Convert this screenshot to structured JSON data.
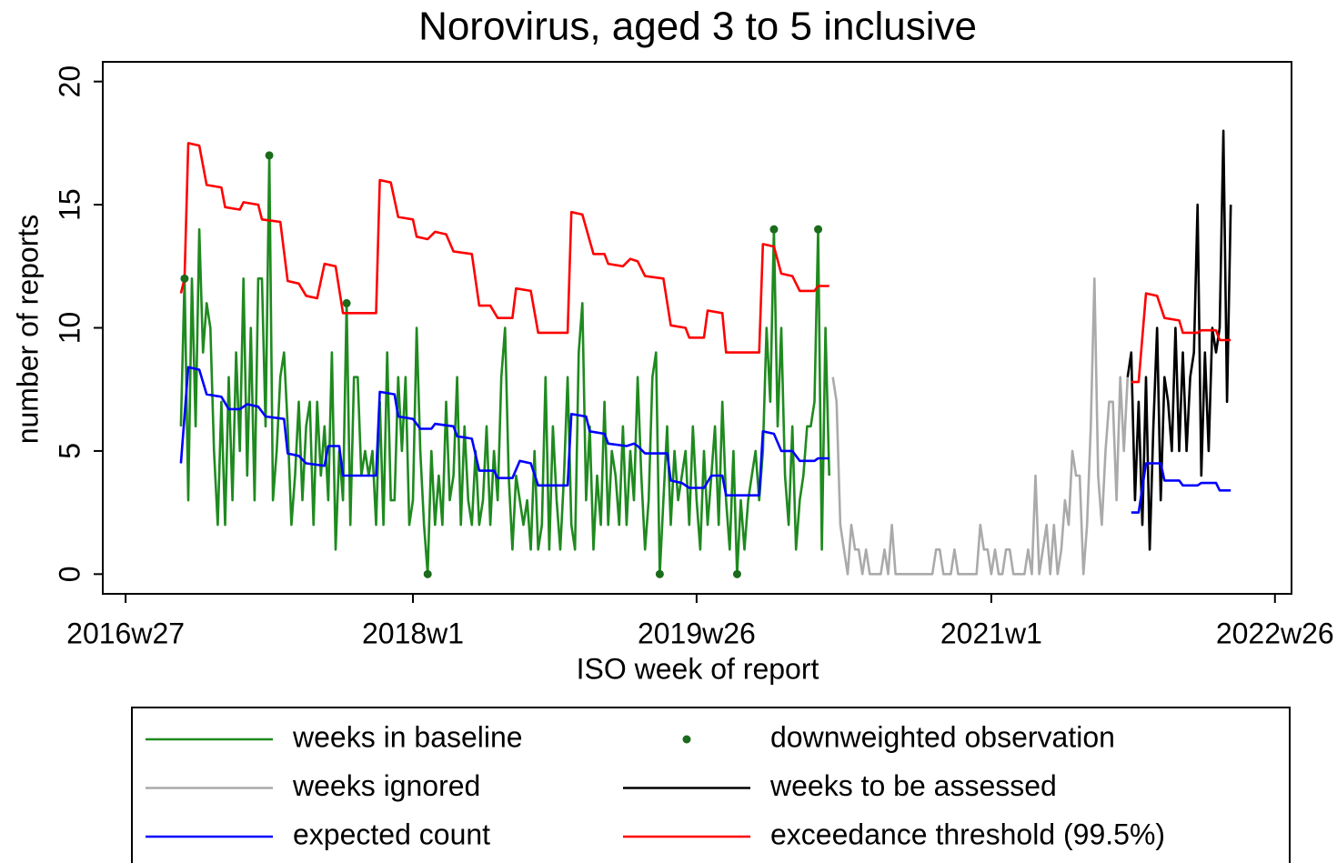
{
  "chart_data": {
    "type": "line",
    "title": "Norovirus, aged 3 to 5 inclusive",
    "x_label": "ISO week of report",
    "y_label": "number of reports",
    "xlim": [
      -6.2,
      316.5
    ],
    "ylim": [
      -0.8,
      20.8
    ],
    "xticks": [
      {
        "value": 0,
        "label": "2016w27"
      },
      {
        "value": 78,
        "label": "2018w1"
      },
      {
        "value": 155,
        "label": "2019w26"
      },
      {
        "value": 235,
        "label": "2021w1"
      },
      {
        "value": 312,
        "label": "2022w26"
      }
    ],
    "yticks": [
      0,
      5,
      10,
      15,
      20
    ],
    "series": [
      {
        "name": "weeks in baseline",
        "color": "#1f8a1f",
        "style": "line",
        "x": [
          15,
          16,
          17,
          18,
          19,
          20,
          21,
          22,
          23,
          24,
          25,
          26,
          27,
          28,
          29,
          30,
          31,
          32,
          33,
          34,
          35,
          36,
          37,
          38,
          39,
          40,
          41,
          42,
          43,
          44,
          45,
          46,
          47,
          48,
          49,
          50,
          51,
          52,
          53,
          54,
          55,
          56,
          57,
          58,
          59,
          60,
          61,
          62,
          63,
          64,
          65,
          66,
          67,
          68,
          69,
          70,
          71,
          72,
          73,
          74,
          75,
          76,
          77,
          78,
          79,
          80,
          81,
          82,
          83,
          84,
          85,
          86,
          87,
          88,
          89,
          90,
          91,
          92,
          93,
          94,
          95,
          96,
          97,
          98,
          99,
          100,
          101,
          102,
          103,
          104,
          105,
          106,
          107,
          108,
          109,
          110,
          111,
          112,
          113,
          114,
          115,
          116,
          117,
          118,
          119,
          120,
          121,
          122,
          123,
          124,
          125,
          126,
          127,
          128,
          129,
          130,
          131,
          132,
          133,
          134,
          135,
          136,
          137,
          138,
          139,
          140,
          141,
          142,
          143,
          144,
          145,
          146,
          147,
          148,
          149,
          150,
          151,
          152,
          153,
          154,
          155,
          156,
          157,
          158,
          159,
          160,
          161,
          162,
          163,
          164,
          165,
          166,
          167,
          168,
          169,
          170,
          171,
          172,
          173,
          174,
          175,
          176,
          177,
          178,
          179,
          180,
          181,
          182,
          183,
          184,
          185,
          186,
          187,
          188,
          189,
          190,
          191
        ],
        "values": [
          6,
          12,
          3,
          12,
          6,
          14,
          9,
          11,
          10,
          5,
          2,
          7,
          2,
          8,
          3,
          9,
          5,
          12,
          4,
          10,
          3,
          12,
          12,
          6,
          17,
          3,
          5,
          8,
          9,
          6,
          2,
          4,
          7,
          3,
          6,
          7,
          2,
          7,
          4,
          6,
          3,
          9,
          1,
          5,
          3,
          11,
          2,
          8,
          8,
          4,
          5,
          4,
          5,
          2,
          7,
          2,
          9,
          3,
          3,
          8,
          5,
          8,
          2,
          3,
          10,
          5,
          2,
          0,
          5,
          2,
          4,
          2,
          7,
          3,
          4,
          8,
          2,
          6,
          3,
          2,
          5,
          2,
          3,
          6,
          2,
          5,
          3,
          8,
          10,
          4,
          1,
          4,
          3,
          2,
          3,
          1,
          5,
          1,
          2,
          8,
          1,
          6,
          3,
          1,
          4,
          8,
          2,
          1,
          9,
          11,
          3,
          6,
          1,
          4,
          2,
          7,
          2,
          5,
          4,
          2,
          6,
          2,
          5,
          3,
          8,
          4,
          1,
          3,
          8,
          9,
          0,
          3,
          6,
          2,
          5,
          3,
          4,
          5,
          2,
          6,
          3,
          1,
          5,
          2,
          4,
          6,
          2,
          7,
          3,
          1,
          5,
          0,
          3,
          1,
          3,
          4,
          5,
          3,
          5,
          10,
          7,
          14,
          6,
          10,
          4,
          2,
          6,
          1,
          3,
          4,
          6,
          6,
          7,
          14,
          1,
          10,
          4
        ]
      },
      {
        "name": "downweighted observation",
        "color": "#1a6b1a",
        "style": "points",
        "x": [
          16,
          39,
          60,
          82,
          145,
          166,
          176,
          188
        ],
        "values": [
          12,
          17,
          11,
          0,
          0,
          0,
          14,
          14
        ]
      },
      {
        "name": "weeks ignored",
        "color": "#aaaaaa",
        "style": "line",
        "x": [
          192,
          193,
          194,
          195,
          196,
          197,
          198,
          199,
          200,
          201,
          202,
          203,
          204,
          205,
          206,
          207,
          208,
          209,
          210,
          211,
          212,
          213,
          214,
          215,
          216,
          217,
          218,
          219,
          220,
          221,
          222,
          223,
          224,
          225,
          226,
          227,
          228,
          229,
          230,
          231,
          232,
          233,
          234,
          235,
          236,
          237,
          238,
          239,
          240,
          241,
          242,
          243,
          244,
          245,
          246,
          247,
          248,
          249,
          250,
          251,
          252,
          253,
          254,
          255,
          256,
          257,
          258,
          259,
          260,
          261,
          262,
          263,
          264,
          265,
          266,
          267,
          268,
          269,
          270,
          271,
          272
        ],
        "values": [
          8,
          7,
          2,
          1,
          0,
          2,
          1,
          1,
          0,
          1,
          0,
          0,
          0,
          0,
          1,
          0,
          2,
          0,
          0,
          0,
          0,
          0,
          0,
          0,
          0,
          0,
          0,
          0,
          1,
          1,
          0,
          0,
          0,
          1,
          0,
          0,
          0,
          0,
          0,
          0,
          2,
          1,
          1,
          0,
          1,
          0,
          0,
          1,
          1,
          0,
          0,
          0,
          0,
          1,
          0,
          4,
          0,
          1,
          2,
          0,
          2,
          0,
          1,
          3,
          2,
          5,
          4,
          4,
          0,
          2,
          6,
          12,
          4,
          2,
          5,
          7,
          7,
          3,
          8,
          5,
          8
        ]
      },
      {
        "name": "weeks to be assessed",
        "color": "#000000",
        "style": "line",
        "x": [
          272,
          273,
          274,
          275,
          276,
          277,
          278,
          279,
          280,
          281,
          282,
          283,
          284,
          285,
          286,
          287,
          288,
          289,
          290,
          291,
          292,
          293,
          294,
          295,
          296,
          297,
          298,
          299,
          300
        ],
        "values": [
          8,
          9,
          3,
          7,
          2,
          8,
          1,
          6,
          10,
          3,
          8,
          7,
          5,
          10,
          5,
          9,
          5,
          8,
          9,
          15,
          4,
          9,
          5,
          10,
          9,
          10,
          18,
          7,
          15
        ]
      },
      {
        "name": "expected count",
        "color": "#0000ff",
        "style": "line",
        "x": [
          15,
          17,
          20,
          22,
          26,
          28,
          31,
          33,
          36,
          38,
          43,
          44,
          47,
          49,
          54,
          55,
          58,
          59,
          68,
          69,
          73,
          74,
          78,
          80,
          83,
          84,
          89,
          90,
          94,
          96,
          100,
          101,
          105,
          107,
          110,
          112,
          120,
          121,
          125,
          126,
          130,
          131,
          136,
          138,
          139,
          141,
          147,
          148,
          151,
          153,
          157,
          159,
          162,
          163,
          172,
          173,
          176,
          178,
          181,
          183,
          187,
          188,
          191,
          232,
          273,
          275,
          277,
          281,
          282,
          286,
          287,
          291,
          292,
          296,
          297,
          300
        ],
        "values": [
          4.5,
          8.4,
          8.3,
          7.3,
          7.2,
          6.7,
          6.7,
          6.9,
          6.8,
          6.4,
          6.3,
          4.9,
          4.8,
          4.5,
          4.4,
          5.2,
          5.2,
          4.0,
          4.0,
          7.4,
          7.3,
          6.4,
          6.3,
          5.9,
          5.9,
          6.1,
          6.0,
          5.6,
          5.5,
          4.2,
          4.2,
          3.9,
          3.9,
          4.6,
          4.5,
          3.6,
          3.6,
          6.5,
          6.4,
          5.8,
          5.7,
          5.3,
          5.2,
          5.3,
          5.2,
          4.9,
          4.9,
          3.8,
          3.7,
          3.5,
          3.5,
          4.0,
          4.0,
          3.2,
          3.2,
          5.8,
          5.7,
          5.0,
          5.0,
          4.6,
          4.6,
          4.7,
          4.7,
          null,
          2.5,
          2.5,
          4.5,
          4.5,
          3.8,
          3.8,
          3.6,
          3.6,
          3.7,
          3.7,
          3.4,
          3.4
        ]
      },
      {
        "name": "exceedance threshold (99.5%)",
        "color": "#ff0000",
        "style": "line",
        "x": [
          15,
          16,
          17,
          20,
          22,
          26,
          27,
          31,
          32,
          36,
          37,
          42,
          44,
          47,
          49,
          52,
          54,
          57,
          59,
          68,
          69,
          72,
          74,
          78,
          79,
          82,
          84,
          87,
          89,
          94,
          96,
          99,
          101,
          105,
          106,
          110,
          112,
          120,
          121,
          124,
          127,
          130,
          131,
          135,
          137,
          139,
          141,
          146,
          148,
          152,
          153,
          157,
          158,
          162,
          163,
          172,
          173,
          176,
          178,
          181,
          183,
          187,
          188,
          191,
          232,
          273,
          275,
          277,
          280,
          282,
          286,
          287,
          291,
          292,
          296,
          297,
          300
        ],
        "values": [
          11.4,
          12.0,
          17.5,
          17.4,
          15.8,
          15.7,
          14.9,
          14.8,
          15.1,
          15.0,
          14.4,
          14.3,
          11.9,
          11.8,
          11.3,
          11.2,
          12.6,
          12.5,
          10.6,
          10.6,
          16.0,
          15.9,
          14.5,
          14.4,
          13.7,
          13.6,
          13.9,
          13.8,
          13.1,
          13.0,
          10.9,
          10.9,
          10.4,
          10.4,
          11.6,
          11.5,
          9.8,
          9.8,
          14.7,
          14.6,
          13.0,
          13.0,
          12.6,
          12.5,
          12.8,
          12.7,
          12.1,
          12.0,
          10.1,
          10.0,
          9.6,
          9.6,
          10.7,
          10.6,
          9.0,
          9.0,
          13.4,
          13.3,
          12.2,
          12.1,
          11.5,
          11.5,
          11.7,
          11.7,
          null,
          7.8,
          7.8,
          11.4,
          11.3,
          10.4,
          10.3,
          9.8,
          9.8,
          9.9,
          9.9,
          9.5,
          9.5
        ]
      }
    ]
  }
}
